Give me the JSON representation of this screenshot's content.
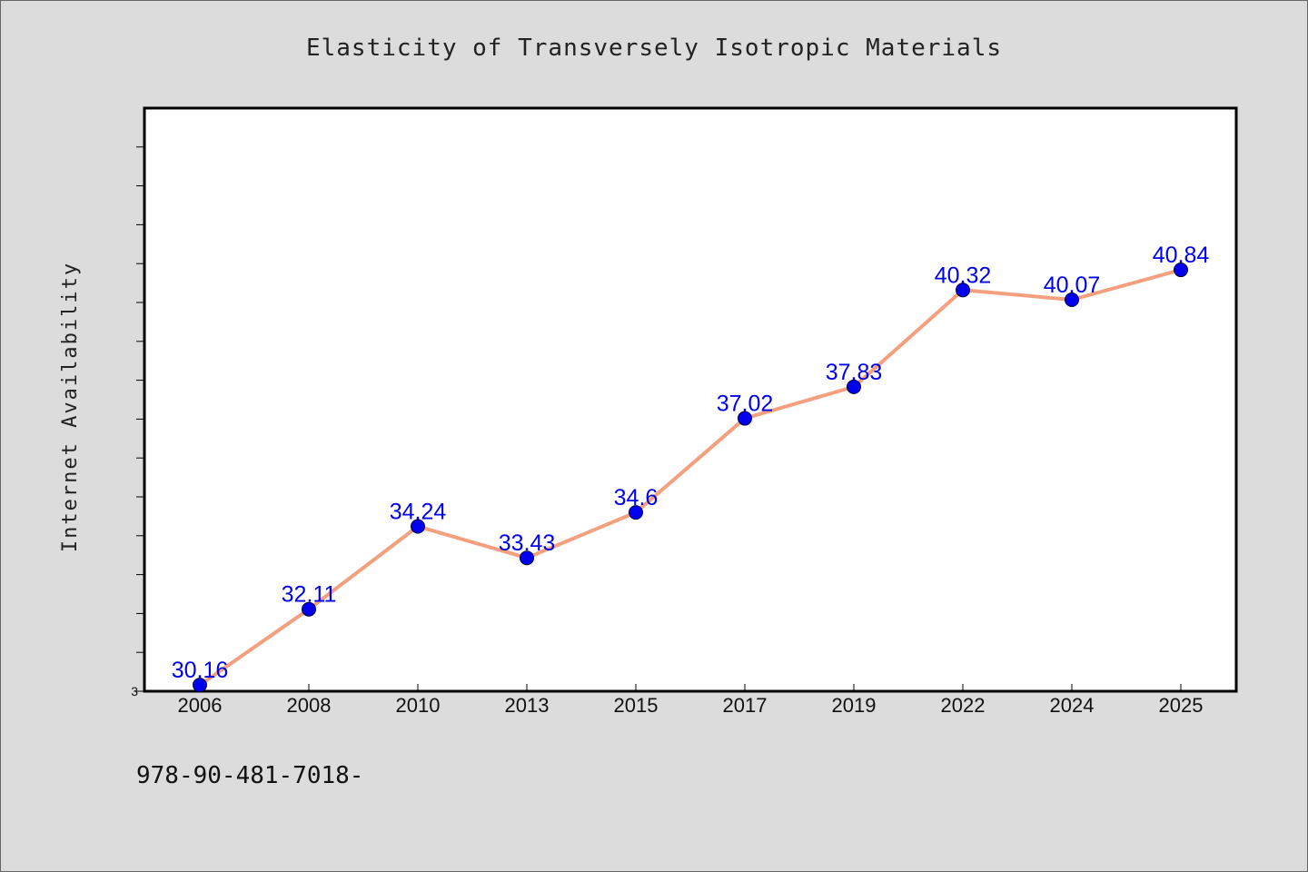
{
  "chart_data": {
    "type": "line",
    "title": "Elasticity of Transversely Isotropic Materials",
    "xlabel": "",
    "ylabel": "Internet Availability",
    "categories": [
      "2006",
      "2008",
      "2010",
      "2013",
      "2015",
      "2017",
      "2019",
      "2022",
      "2024",
      "2025"
    ],
    "series": [
      {
        "values": [
          30.16,
          32.11,
          34.24,
          33.43,
          34.6,
          37.02,
          37.83,
          40.32,
          40.07,
          40.84
        ],
        "data_labels": [
          "30.16",
          "32.11",
          "34.24",
          "33.43",
          "34.6",
          "37.02",
          "37.83",
          "40.32",
          "40.07",
          "40.84"
        ]
      }
    ],
    "ylim": [
      30,
      45
    ],
    "y_tick_labels": [
      "3"
    ],
    "grid": false,
    "legend": "none",
    "colors": {
      "line": "#f4a07f",
      "marker": "#0000ee",
      "data_label": "#0000ee",
      "background": "#dcdcdc",
      "plot_background": "#ffffff"
    }
  },
  "footer": {
    "text": "978-90-481-7018-"
  }
}
